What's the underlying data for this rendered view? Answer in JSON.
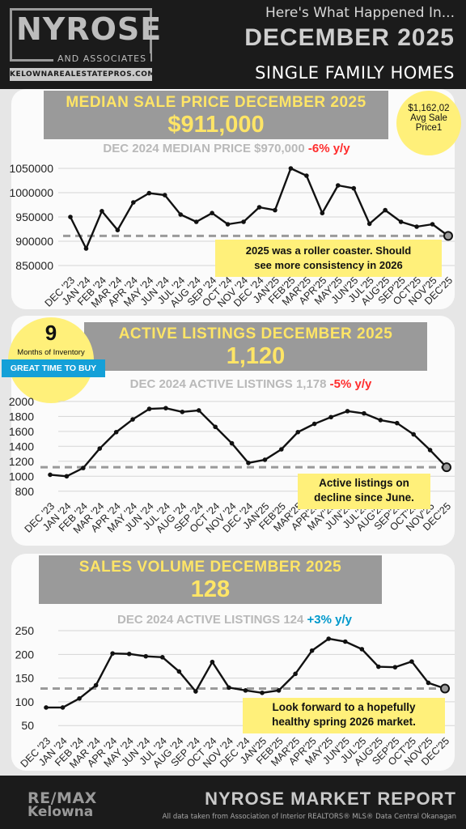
{
  "header": {
    "logo_name": "NYROSE",
    "logo_assoc": "AND ASSOCIATES",
    "logo_site": "KELOWNAREALESTATEPROS.COM",
    "intro": "Here's What Happened In...",
    "month": "DECEMBER 2025",
    "property_type": "SINGLE FAMILY HOMES"
  },
  "price_panel": {
    "title": "MEDIAN SALE PRICE DECEMBER 2025",
    "value": "$911,000",
    "compare_prefix": "DEC 2024 MEDIAN PRICE $970,000",
    "compare_change": "-6% y/y",
    "avg_line1": "$1,162,02",
    "avg_line2": "Avg Sale",
    "avg_line3": "Price1",
    "callout_line1": "2025 was a roller coaster. Should",
    "callout_line2": "see more consistency in 2026"
  },
  "listings_panel": {
    "title": "ACTIVE LISTINGS DECEMBER 2025",
    "value": "1,120",
    "compare_prefix": "DEC 2024 ACTIVE LISTINGS 1,178",
    "compare_change": "-5% y/y",
    "inventory_months": "9",
    "inventory_label": "Months of Inventory",
    "inventory_badge": "GREAT TIME TO BUY",
    "callout_line1": "Active listings on",
    "callout_line2": "decline since June."
  },
  "sales_panel": {
    "title": "SALES VOLUME DECEMBER 2025",
    "value": "128",
    "compare_prefix": "DEC 2024 ACTIVE LISTINGS 124",
    "compare_change": "+3% y/y",
    "callout_line1": "Look forward to a hopefully",
    "callout_line2": "healthy spring 2026 market."
  },
  "footer": {
    "brand_line1": "RE/MAX",
    "brand_line2": "Kelowna",
    "report_title": "NYROSE MARKET REPORT",
    "source": "All data taken from Association of Interior REALTORS® MLS® Data Central Okanagan"
  },
  "colors": {
    "accent_yellow": "#ffe566",
    "callout_yellow": "#fff07a",
    "negative_red": "#ff2d2d",
    "positive_teal": "#0099cc",
    "banner_gray": "#9a9a9a",
    "dark_bg": "#1b1b1b"
  },
  "chart_data": [
    {
      "type": "line",
      "categories": [
        "DEC '23",
        "JAN '24",
        "FEB '24",
        "MAR '24",
        "APR '24",
        "MAY '24",
        "JUN '24",
        "JUL '24",
        "AUG '24",
        "SEP '24",
        "OCT '24",
        "NOV '24",
        "DEC '24",
        "JAN'25",
        "FEB'25",
        "MAR'25",
        "APR'25",
        "MAY'25",
        "JUN'25",
        "JUL'25",
        "AUG'25",
        "SEP'25",
        "OCT'25",
        "NOV'25",
        "DEC'25"
      ],
      "values": [
        950000,
        885000,
        962000,
        923000,
        980000,
        999000,
        995000,
        955000,
        940000,
        958000,
        935000,
        940000,
        970000,
        964000,
        1050000,
        1035000,
        958000,
        1015000,
        1009000,
        936000,
        964000,
        940000,
        930000,
        935000,
        911000
      ],
      "yticks": [
        850000,
        900000,
        950000,
        1000000,
        1050000
      ],
      "ytick_labels": [
        "850000",
        "900000",
        "950000",
        "1000000",
        "1050000"
      ],
      "ylim": [
        835000,
        1065000
      ],
      "reference_line": 911000,
      "grid": true
    },
    {
      "type": "line",
      "categories": [
        "DEC '23",
        "JAN '24",
        "FEB '24",
        "MAR '24",
        "APR '24",
        "MAY '24",
        "JUN '24",
        "JUL '24",
        "AUG '24",
        "SEP '24",
        "OCT '24",
        "NOV '24",
        "DEC '24",
        "JAN'25",
        "FEB'25",
        "MAR'25",
        "APR'25",
        "MAY'25",
        "JUN'25",
        "JUL'25",
        "AUG'25",
        "SEP'25",
        "OCT'25",
        "NOV'25",
        "DEC'25"
      ],
      "values": [
        1020,
        1000,
        1110,
        1370,
        1590,
        1760,
        1900,
        1910,
        1860,
        1880,
        1660,
        1440,
        1178,
        1220,
        1360,
        1590,
        1700,
        1790,
        1870,
        1840,
        1750,
        1710,
        1560,
        1350,
        1120
      ],
      "yticks": [
        800,
        1000,
        1200,
        1400,
        1600,
        1800,
        2000
      ],
      "ytick_labels": [
        "800",
        "1000",
        "1200",
        "1400",
        "1600",
        "1800",
        "2000"
      ],
      "ylim": [
        700,
        2020
      ],
      "reference_line": 1120,
      "grid": true
    },
    {
      "type": "line",
      "categories": [
        "DEC '23",
        "JAN '24",
        "FEB '24",
        "MAR '24",
        "APR '24",
        "MAY '24",
        "JUN '24",
        "JUL '24",
        "AUG '24",
        "SEP '24",
        "OCT '24",
        "NOV '24",
        "DEC '24",
        "JAN'25",
        "FEB'25",
        "MAR'25",
        "APR'25",
        "MAY'25",
        "JUN'25",
        "JUL'25",
        "AUG'25",
        "SEP'25",
        "OCT'25",
        "NOV'25",
        "DEC'25"
      ],
      "values": [
        88,
        88,
        107,
        135,
        202,
        201,
        196,
        194,
        164,
        122,
        184,
        130,
        124,
        119,
        124,
        159,
        208,
        233,
        227,
        211,
        174,
        173,
        185,
        140,
        128
      ],
      "yticks": [
        50,
        100,
        150,
        200,
        250
      ],
      "ytick_labels": [
        "50",
        "100",
        "150",
        "200",
        "250"
      ],
      "ylim": [
        35,
        262
      ],
      "reference_line": 128,
      "grid": true
    }
  ]
}
